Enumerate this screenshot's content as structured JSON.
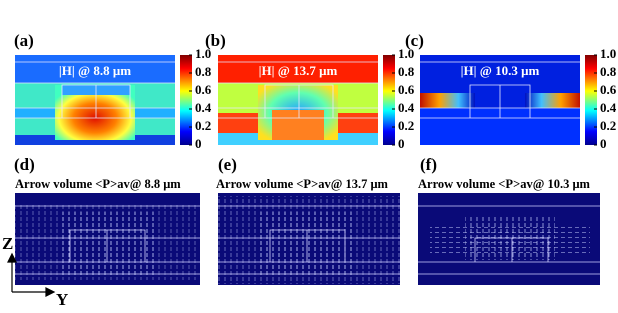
{
  "panels": [
    {
      "label": "(a)",
      "title": "|H| @ 8.8 μm"
    },
    {
      "label": "(b)",
      "title": "|H| @ 13.7 μm"
    },
    {
      "label": "(c)",
      "title": "|H| @ 10.3 μm"
    },
    {
      "label": "(d)",
      "title": "Arrow volume <P>av@ 8.8 μm"
    },
    {
      "label": "(e)",
      "title": "Arrow volume <P>av@ 13.7 μm"
    },
    {
      "label": "(f)",
      "title": "Arrow volume <P>av@ 10.3 μm"
    }
  ],
  "colorbar_ticks": [
    "1.0",
    "0.8",
    "0.6",
    "0.4",
    "0.2",
    "0"
  ],
  "axes": {
    "z": "Z",
    "y": "Y"
  }
}
